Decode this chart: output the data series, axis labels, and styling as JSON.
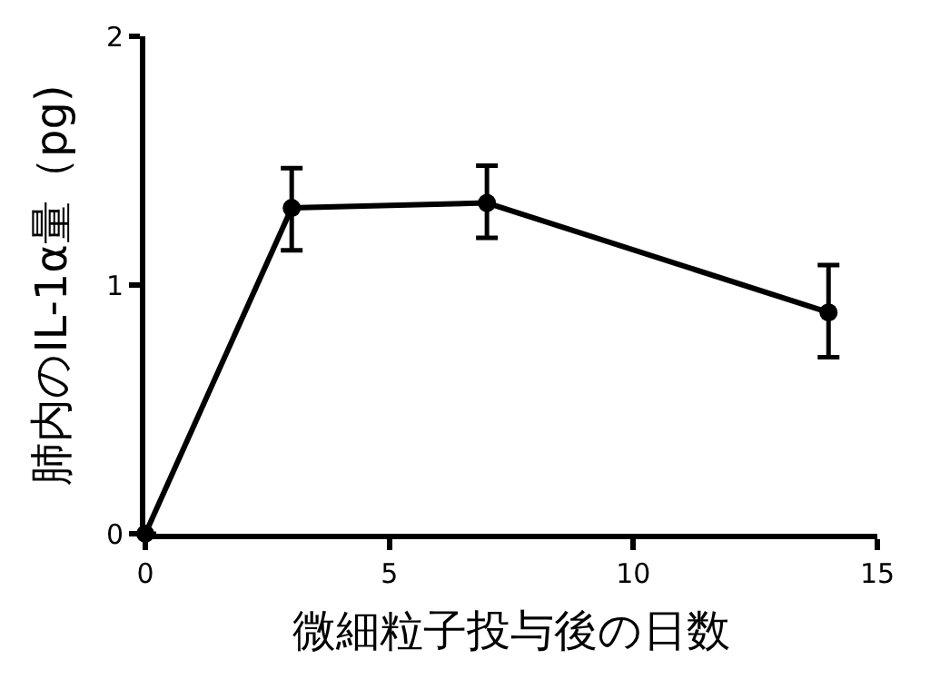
{
  "chart_data": {
    "type": "line",
    "xlabel": "微細粒子投与後の日数",
    "ylabel": "肺内のIL-1α量（pg)",
    "x": [
      0,
      3,
      7,
      14
    ],
    "values": [
      0,
      1.31,
      1.33,
      0.89
    ],
    "errors": [
      null,
      [
        1.14,
        1.47
      ],
      [
        1.19,
        1.48
      ],
      [
        0.71,
        1.08
      ]
    ],
    "color": "#000000",
    "marker": "circle",
    "line_style": "solid",
    "legend": false,
    "xlim": [
      0,
      15
    ],
    "xticks": [
      0,
      5,
      10,
      15
    ],
    "ylim": [
      0,
      2
    ],
    "yticks": [
      0,
      1,
      2
    ]
  }
}
